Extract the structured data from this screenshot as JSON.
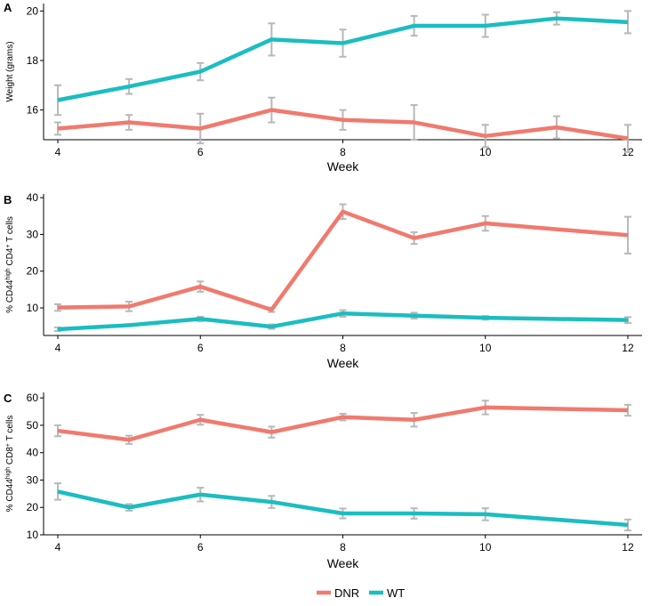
{
  "chart_data": [
    {
      "type": "line",
      "panel": "A",
      "title": "",
      "xlabel": "Week",
      "ylabel": "Weight (grams)",
      "xlim": [
        3.8,
        12.2
      ],
      "ylim": [
        14.8,
        20.3
      ],
      "xticks": [
        4,
        6,
        8,
        10,
        12
      ],
      "yticks": [
        16,
        18,
        20
      ],
      "series": [
        {
          "name": "DNR",
          "color": "#F07A6E",
          "x": [
            4,
            5,
            6,
            7,
            8,
            9,
            10,
            11,
            12
          ],
          "y": [
            15.25,
            15.5,
            15.25,
            16.0,
            15.6,
            15.5,
            14.95,
            15.3,
            14.85
          ],
          "err": [
            0.25,
            0.3,
            0.6,
            0.5,
            0.4,
            0.7,
            0.45,
            0.45,
            0.55
          ]
        },
        {
          "name": "WT",
          "color": "#1BBDC1",
          "x": [
            4,
            5,
            6,
            7,
            8,
            9,
            10,
            11,
            12
          ],
          "y": [
            16.4,
            16.95,
            17.55,
            18.85,
            18.7,
            19.4,
            19.4,
            19.7,
            19.55
          ],
          "err": [
            0.6,
            0.3,
            0.35,
            0.65,
            0.55,
            0.4,
            0.45,
            0.25,
            0.45
          ]
        }
      ]
    },
    {
      "type": "line",
      "panel": "B",
      "title": "",
      "xlabel": "Week",
      "ylabel": "% CD44^high CD4^+ T cells",
      "ylabel_parts": [
        "% CD44",
        "high",
        " CD4",
        "+",
        " T cells"
      ],
      "xlim": [
        3.8,
        12.2
      ],
      "ylim": [
        2.5,
        41
      ],
      "xticks": [
        4,
        6,
        8,
        10,
        12
      ],
      "yticks": [
        10,
        20,
        30,
        40
      ],
      "series": [
        {
          "name": "DNR",
          "color": "#F07A6E",
          "x": [
            4,
            5,
            6,
            7,
            8,
            9,
            10,
            12
          ],
          "y": [
            10.1,
            10.4,
            15.8,
            9.5,
            36.2,
            29.0,
            33.0,
            29.8
          ],
          "err": [
            0.9,
            1.3,
            1.4,
            0.6,
            2.0,
            1.6,
            2.0,
            5.0
          ]
        },
        {
          "name": "WT",
          "color": "#1BBDC1",
          "x": [
            4,
            5,
            6,
            7,
            8,
            9,
            10,
            12
          ],
          "y": [
            4.2,
            5.3,
            7.0,
            4.9,
            8.5,
            7.9,
            7.3,
            6.7
          ],
          "err": [
            0.5,
            0.3,
            0.6,
            0.6,
            0.9,
            0.8,
            0.5,
            0.8
          ]
        }
      ]
    },
    {
      "type": "line",
      "panel": "C",
      "title": "",
      "xlabel": "Week",
      "ylabel": "% CD44^high CD8^+ T cells",
      "ylabel_parts": [
        "% CD44",
        "high",
        " CD8",
        "+",
        " T cells"
      ],
      "xlim": [
        3.8,
        12.2
      ],
      "ylim": [
        10,
        62
      ],
      "xticks": [
        4,
        6,
        8,
        10,
        12
      ],
      "yticks": [
        10,
        20,
        30,
        40,
        50,
        60
      ],
      "series": [
        {
          "name": "DNR",
          "color": "#F07A6E",
          "x": [
            4,
            5,
            6,
            7,
            8,
            9,
            10,
            12
          ],
          "y": [
            48.0,
            44.7,
            52.0,
            47.5,
            53.0,
            52.0,
            56.5,
            55.5
          ],
          "err": [
            2.0,
            1.5,
            1.8,
            2.0,
            1.2,
            2.5,
            2.5,
            2.0
          ]
        },
        {
          "name": "WT",
          "color": "#1BBDC1",
          "x": [
            4,
            5,
            6,
            7,
            8,
            9,
            10,
            12
          ],
          "y": [
            25.8,
            20.0,
            24.7,
            22.0,
            17.8,
            17.8,
            17.5,
            13.6
          ],
          "err": [
            3.0,
            1.2,
            2.5,
            2.2,
            1.8,
            1.9,
            2.2,
            2.0
          ]
        }
      ]
    }
  ],
  "legend": {
    "position": "bottom",
    "items": [
      {
        "label": "DNR",
        "color": "#F07A6E"
      },
      {
        "label": "WT",
        "color": "#1BBDC1"
      }
    ]
  },
  "style": {
    "errorbar_color": "#B8B8B8",
    "axis_color": "#000000"
  }
}
